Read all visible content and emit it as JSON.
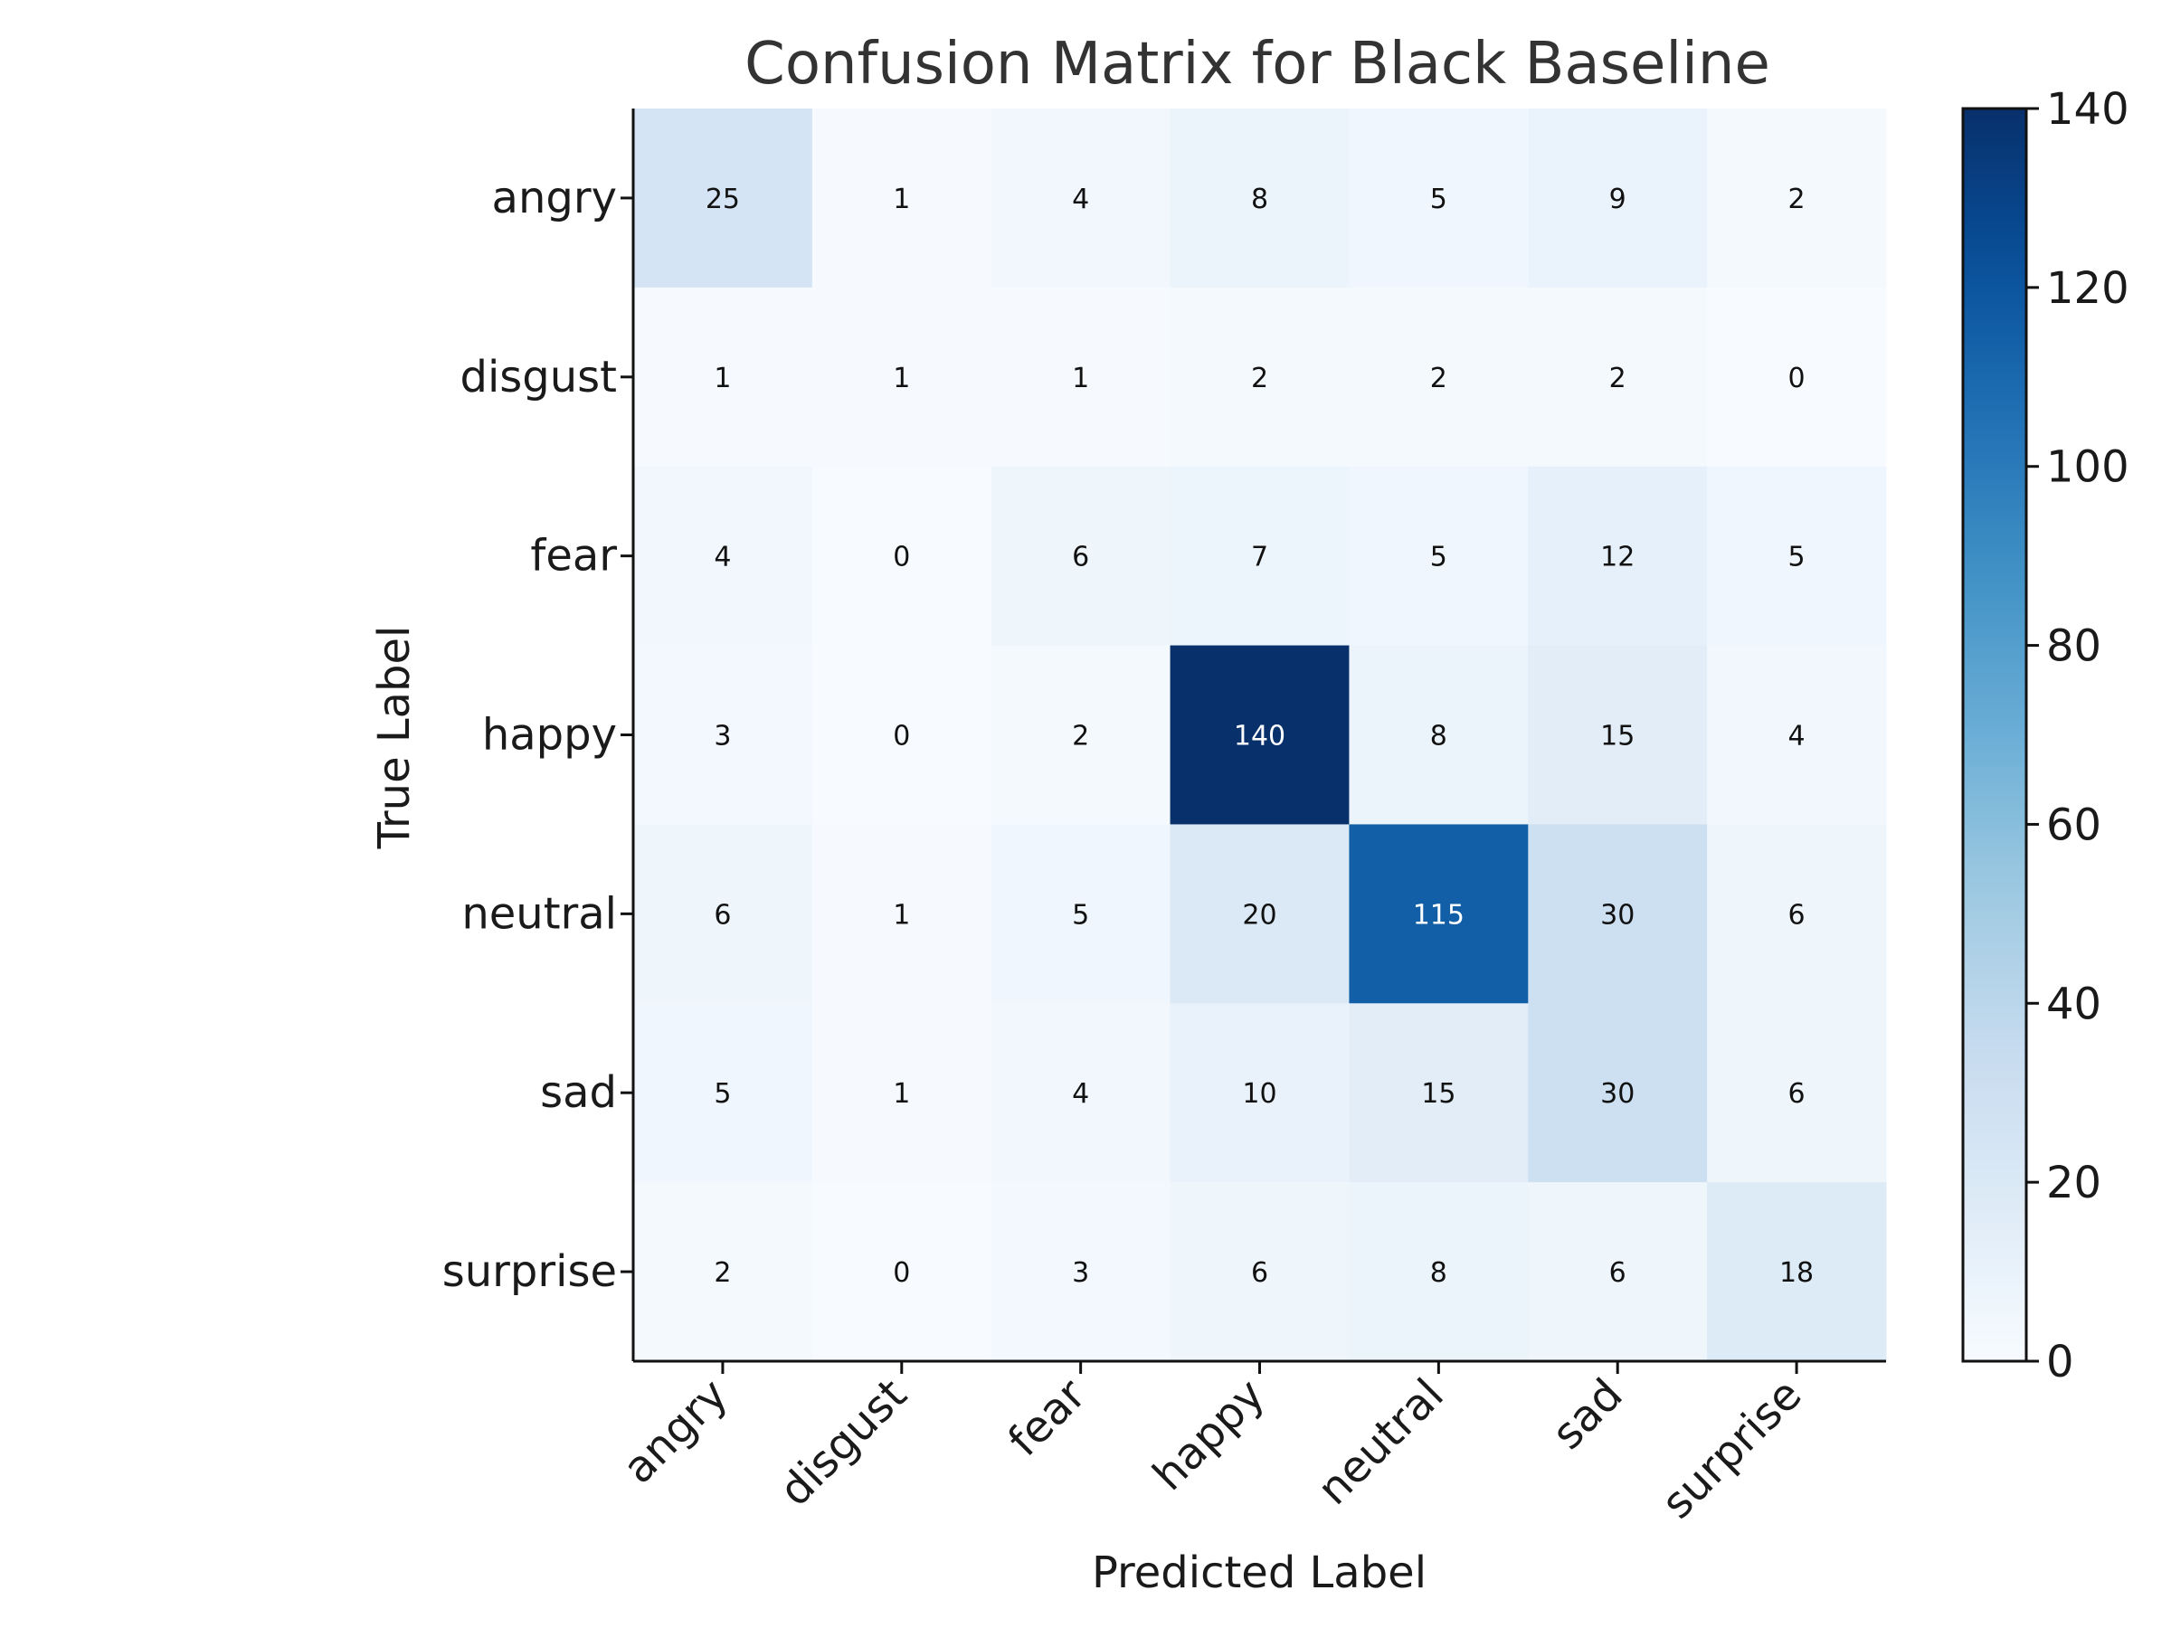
{
  "chart_data": {
    "type": "heatmap",
    "title": "Confusion Matrix for Black Baseline",
    "xlabel": "Predicted Label",
    "ylabel": "True Label",
    "x_categories": [
      "angry",
      "disgust",
      "fear",
      "happy",
      "neutral",
      "sad",
      "surprise"
    ],
    "y_categories": [
      "angry",
      "disgust",
      "fear",
      "happy",
      "neutral",
      "sad",
      "surprise"
    ],
    "values": [
      [
        25,
        1,
        4,
        8,
        5,
        9,
        2
      ],
      [
        1,
        1,
        1,
        2,
        2,
        2,
        0
      ],
      [
        4,
        0,
        6,
        7,
        5,
        12,
        5
      ],
      [
        3,
        0,
        2,
        140,
        8,
        15,
        4
      ],
      [
        6,
        1,
        5,
        20,
        115,
        30,
        6
      ],
      [
        5,
        1,
        4,
        10,
        15,
        30,
        6
      ],
      [
        2,
        0,
        3,
        6,
        8,
        6,
        18
      ]
    ],
    "colorbar": {
      "min": 0,
      "max": 140,
      "ticks": [
        0,
        20,
        40,
        60,
        80,
        100,
        120,
        140
      ],
      "colormap": "Blues"
    },
    "grid": false
  }
}
